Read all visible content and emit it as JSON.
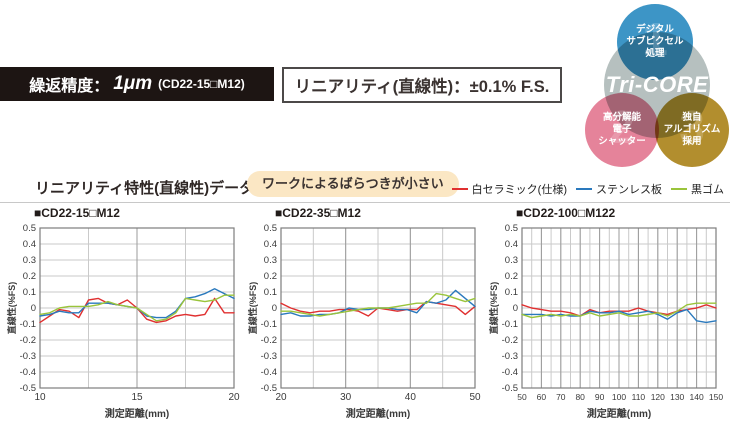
{
  "banners": {
    "repeatability": {
      "label": "繰返精度：",
      "value": "1μm",
      "note": "(CD22-15□M12)"
    },
    "linearity": {
      "text": "リニアリティ(直線性)：±0.1% F.S."
    }
  },
  "tricore": {
    "center_label": "Tri-CORE",
    "center_color": "#b6c0bf",
    "circles": [
      {
        "num": "1",
        "lines": [
          "デジタル",
          "サブピクセル",
          "処理"
        ],
        "color": "#3d95c6"
      },
      {
        "num": "2",
        "lines": [
          "高分解能",
          "電子",
          "シャッター"
        ],
        "color": "#e5839a"
      },
      {
        "num": "3",
        "lines": [
          "独自",
          "アルゴリズム",
          "採用"
        ],
        "color": "#b28e2e"
      }
    ]
  },
  "section": {
    "heading": "リニアリティ特性(直線性)データ",
    "callout": "ワークによるばらつきが小さい",
    "legend": [
      {
        "label": "白セラミック(仕様)",
        "color": "#e03030"
      },
      {
        "label": "ステンレス板",
        "color": "#2a79bd"
      },
      {
        "label": "黒ゴム",
        "color": "#9ac43b"
      }
    ]
  },
  "chart_data": [
    {
      "type": "line",
      "title": "■CD22-15□M12",
      "xlabel": "測定距離(mm)",
      "ylabel": "直線性(%FS)",
      "xlim": [
        10,
        20
      ],
      "ylim": [
        -0.5,
        0.5
      ],
      "y_tick_step": 0.1,
      "x_minor_step": 2.5,
      "x_major_ticks": [
        10,
        15,
        20
      ],
      "grid": true,
      "x": [
        10,
        10.5,
        11,
        11.5,
        12,
        12.5,
        13,
        13.5,
        14,
        14.5,
        15,
        15.5,
        16,
        16.5,
        17,
        17.5,
        18,
        18.5,
        19,
        19.5,
        20
      ],
      "series": [
        {
          "name": "白セラミック(仕様)",
          "color": "#e03030",
          "values": [
            -0.09,
            -0.05,
            -0.01,
            -0.02,
            -0.06,
            0.05,
            0.06,
            0.03,
            0.02,
            0.05,
            0.0,
            -0.07,
            -0.09,
            -0.08,
            -0.05,
            -0.04,
            -0.05,
            -0.04,
            0.06,
            -0.03,
            -0.03
          ]
        },
        {
          "name": "ステンレス板",
          "color": "#2a79bd",
          "values": [
            -0.05,
            -0.04,
            -0.02,
            -0.03,
            -0.03,
            0.03,
            0.03,
            0.03,
            0.02,
            0.01,
            0.0,
            -0.05,
            -0.06,
            -0.06,
            -0.02,
            0.06,
            0.07,
            0.09,
            0.12,
            0.09,
            0.06
          ]
        },
        {
          "name": "黒ゴム",
          "color": "#9ac43b",
          "values": [
            -0.04,
            -0.03,
            0.0,
            0.01,
            0.01,
            0.01,
            0.02,
            0.04,
            0.02,
            0.01,
            0.0,
            -0.04,
            -0.08,
            -0.07,
            -0.03,
            0.06,
            0.05,
            0.04,
            0.05,
            0.08,
            0.08
          ]
        }
      ]
    },
    {
      "type": "line",
      "title": "■CD22-35□M12",
      "xlabel": "測定距離(mm)",
      "ylabel": "直線性(%FS)",
      "xlim": [
        20,
        50
      ],
      "ylim": [
        -0.5,
        0.5
      ],
      "y_tick_step": 0.1,
      "x_minor_step": 5,
      "x_major_ticks": [
        20,
        30,
        40,
        50
      ],
      "grid": true,
      "x": [
        20,
        21.5,
        23,
        24.5,
        26,
        27.5,
        29,
        30.5,
        32,
        33.5,
        35,
        36.5,
        38,
        39.5,
        41,
        42.5,
        44,
        45.5,
        47,
        48.5,
        50
      ],
      "series": [
        {
          "name": "白セラミック(仕様)",
          "color": "#e03030",
          "values": [
            0.03,
            0.0,
            -0.02,
            -0.03,
            -0.02,
            -0.02,
            -0.01,
            -0.01,
            -0.02,
            -0.05,
            0.0,
            -0.01,
            -0.02,
            -0.01,
            -0.01,
            0.04,
            0.03,
            0.02,
            0.01,
            -0.04,
            0.01
          ]
        },
        {
          "name": "ステンレス板",
          "color": "#2a79bd",
          "values": [
            -0.04,
            -0.03,
            -0.05,
            -0.05,
            -0.04,
            -0.04,
            -0.03,
            0.0,
            -0.01,
            -0.01,
            0.0,
            0.0,
            -0.01,
            -0.01,
            -0.03,
            0.04,
            0.03,
            0.05,
            0.11,
            0.06,
            0.01
          ]
        },
        {
          "name": "黒ゴム",
          "color": "#9ac43b",
          "values": [
            -0.02,
            -0.02,
            -0.03,
            -0.04,
            -0.05,
            -0.04,
            -0.03,
            -0.02,
            -0.01,
            0.0,
            0.0,
            0.0,
            0.01,
            0.02,
            0.03,
            0.03,
            0.09,
            0.08,
            0.06,
            0.04,
            0.06
          ]
        }
      ]
    },
    {
      "type": "line",
      "title": "■CD22-100□M122",
      "xlabel": "測定距離(mm)",
      "ylabel": "直線性(%FS)",
      "xlim": [
        50,
        150
      ],
      "ylim": [
        -0.5,
        0.5
      ],
      "y_tick_step": 0.1,
      "x_minor_step": 5,
      "x_major_ticks": [
        50,
        60,
        70,
        80,
        90,
        100,
        110,
        120,
        130,
        140,
        150
      ],
      "grid": true,
      "x": [
        50,
        55,
        60,
        65,
        70,
        75,
        80,
        85,
        90,
        95,
        100,
        105,
        110,
        115,
        120,
        125,
        130,
        135,
        140,
        145,
        150
      ],
      "series": [
        {
          "name": "白セラミック(仕様)",
          "color": "#e03030",
          "values": [
            0.02,
            0.0,
            -0.01,
            -0.02,
            -0.02,
            -0.03,
            -0.05,
            -0.01,
            -0.03,
            -0.02,
            -0.02,
            -0.02,
            0.0,
            -0.02,
            -0.03,
            -0.04,
            -0.02,
            -0.01,
            0.0,
            0.02,
            0.0
          ]
        },
        {
          "name": "ステンレス板",
          "color": "#2a79bd",
          "values": [
            -0.04,
            -0.04,
            -0.04,
            -0.05,
            -0.04,
            -0.05,
            -0.05,
            -0.02,
            -0.03,
            -0.03,
            -0.02,
            -0.04,
            -0.03,
            -0.02,
            -0.04,
            -0.07,
            -0.03,
            -0.01,
            -0.08,
            -0.09,
            -0.08
          ]
        },
        {
          "name": "黒ゴム",
          "color": "#9ac43b",
          "values": [
            -0.04,
            -0.06,
            -0.05,
            -0.04,
            -0.05,
            -0.04,
            -0.05,
            -0.03,
            -0.05,
            -0.04,
            -0.03,
            -0.05,
            -0.05,
            -0.04,
            -0.03,
            -0.05,
            -0.02,
            0.02,
            0.03,
            0.03,
            0.03
          ]
        }
      ]
    }
  ]
}
